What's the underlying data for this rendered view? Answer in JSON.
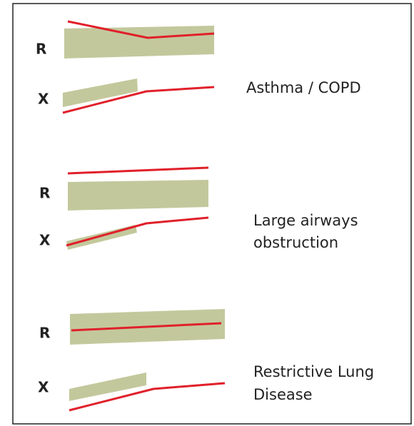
{
  "panels": [
    {
      "r_label": "R",
      "x_label": "X",
      "caption": [
        "Asthma / COPD"
      ]
    },
    {
      "r_label": "R",
      "x_label": "X",
      "caption": [
        "Large airways",
        "obstruction"
      ]
    },
    {
      "r_label": "R",
      "x_label": "X",
      "caption": [
        "Restrictive Lung",
        "Disease"
      ]
    }
  ]
}
